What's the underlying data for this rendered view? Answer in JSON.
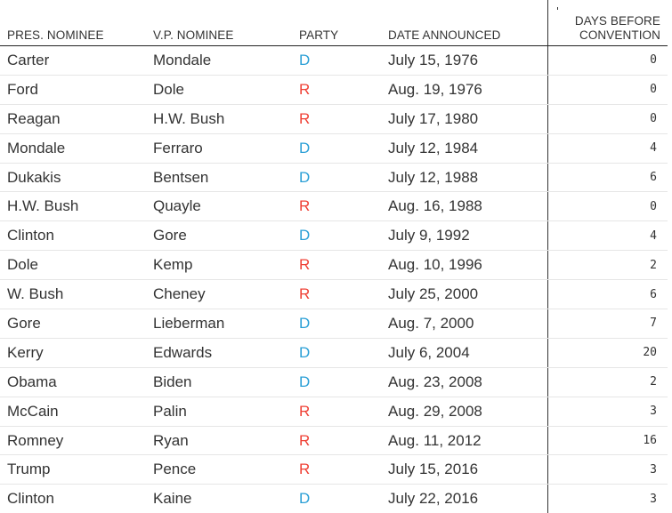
{
  "headers": {
    "pres": "PRES. NOMINEE",
    "vp": "V.P. NOMINEE",
    "party": "PARTY",
    "date": "DATE ANNOUNCED",
    "days_line1": "DAYS BEFORE",
    "days_line2": "CONVENTION"
  },
  "rows": [
    {
      "pres": "Carter",
      "vp": "Mondale",
      "party": "D",
      "date": "July 15, 1976",
      "days": "0"
    },
    {
      "pres": "Ford",
      "vp": "Dole",
      "party": "R",
      "date": "Aug. 19, 1976",
      "days": "0"
    },
    {
      "pres": "Reagan",
      "vp": "H.W. Bush",
      "party": "R",
      "date": "July 17, 1980",
      "days": "0"
    },
    {
      "pres": "Mondale",
      "vp": "Ferraro",
      "party": "D",
      "date": "July 12, 1984",
      "days": "4"
    },
    {
      "pres": "Dukakis",
      "vp": "Bentsen",
      "party": "D",
      "date": "July 12, 1988",
      "days": "6"
    },
    {
      "pres": "H.W. Bush",
      "vp": "Quayle",
      "party": "R",
      "date": "Aug. 16, 1988",
      "days": "0"
    },
    {
      "pres": "Clinton",
      "vp": "Gore",
      "party": "D",
      "date": "July 9, 1992",
      "days": "4"
    },
    {
      "pres": "Dole",
      "vp": "Kemp",
      "party": "R",
      "date": "Aug. 10, 1996",
      "days": "2"
    },
    {
      "pres": "W. Bush",
      "vp": "Cheney",
      "party": "R",
      "date": "July 25, 2000",
      "days": "6"
    },
    {
      "pres": "Gore",
      "vp": "Lieberman",
      "party": "D",
      "date": "Aug. 7, 2000",
      "days": "7"
    },
    {
      "pres": "Kerry",
      "vp": "Edwards",
      "party": "D",
      "date": "July 6, 2004",
      "days": "20"
    },
    {
      "pres": "Obama",
      "vp": "Biden",
      "party": "D",
      "date": "Aug. 23, 2008",
      "days": "2"
    },
    {
      "pres": "McCain",
      "vp": "Palin",
      "party": "R",
      "date": "Aug. 29, 2008",
      "days": "3"
    },
    {
      "pres": "Romney",
      "vp": "Ryan",
      "party": "R",
      "date": "Aug. 11, 2012",
      "days": "16"
    },
    {
      "pres": "Trump",
      "vp": "Pence",
      "party": "R",
      "date": "July 15, 2016",
      "days": "3"
    },
    {
      "pres": "Clinton",
      "vp": "Kaine",
      "party": "D",
      "date": "July 22, 2016",
      "days": "3"
    }
  ],
  "colors": {
    "democrat": "#2a9fd6",
    "republican": "#ef4136"
  }
}
